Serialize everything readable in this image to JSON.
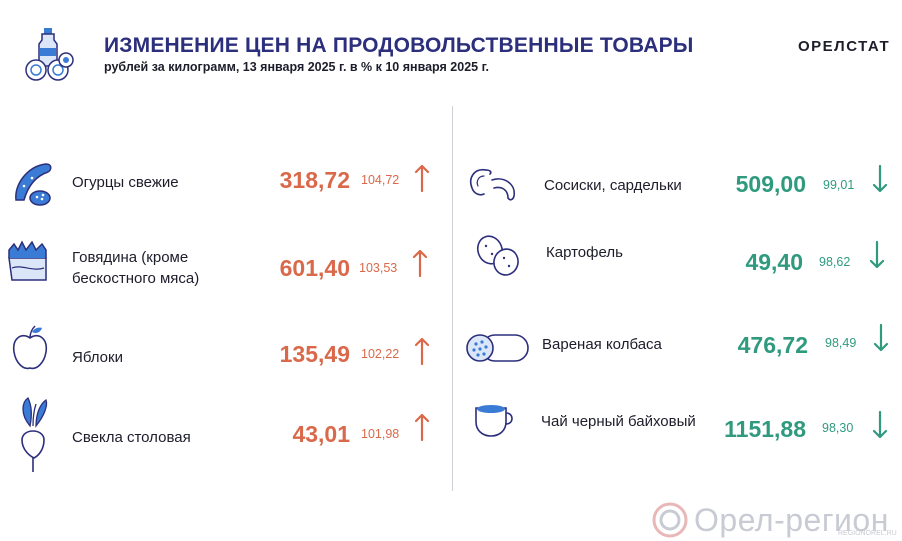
{
  "header": {
    "title": "ИЗМЕНЕНИЕ ЦЕН НА ПРОДОВОЛЬСТВЕННЫЕ ТОВАРЫ",
    "subtitle": "рублей за килограмм, 13 января 2025 г. в % к 10 января 2025 г.",
    "brand": "ОРЕЛСТАТ"
  },
  "left_items": [
    {
      "name": "Огурцы свежие",
      "price": "318,72",
      "pct": "104,72",
      "trend": "up",
      "icon": "cucumber-icon"
    },
    {
      "name": "Говядина (кроме бескостного мяса)",
      "price": "601,40",
      "pct": "103,53",
      "trend": "up",
      "icon": "beef-icon"
    },
    {
      "name": "Яблоки",
      "price": "135,49",
      "pct": "102,22",
      "trend": "up",
      "icon": "apple-icon"
    },
    {
      "name": "Свекла столовая",
      "price": "43,01",
      "pct": "101,98",
      "trend": "up",
      "icon": "beet-icon"
    }
  ],
  "right_items": [
    {
      "name": "Сосиски, сардельки",
      "price": "509,00",
      "pct": "99,01",
      "trend": "down",
      "icon": "sausages-icon"
    },
    {
      "name": "Картофель",
      "price": "49,40",
      "pct": "98,62",
      "trend": "down",
      "icon": "potato-icon"
    },
    {
      "name": "Вареная колбаса",
      "price": "476,72",
      "pct": "98,49",
      "trend": "down",
      "icon": "boiled-sausage-icon"
    },
    {
      "name": "Чай черный байховый",
      "price": "1151,88",
      "pct": "98,30",
      "trend": "down",
      "icon": "tea-cup-icon"
    }
  ],
  "colors": {
    "up": "#d9694a",
    "down": "#2f9a7e",
    "title": "#2c2f7c",
    "icon_fill": "#3a7bd5",
    "icon_stroke": "#2c2f7c"
  },
  "watermark": {
    "text": "Орел-регион",
    "small": "REGIONOREL.RU"
  }
}
